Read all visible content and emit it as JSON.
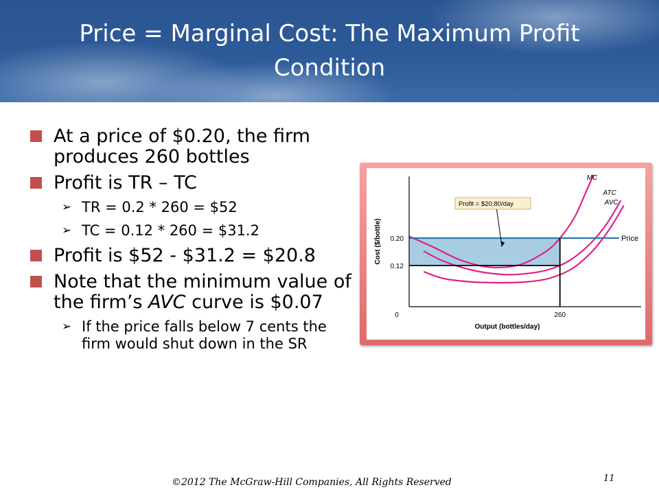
{
  "slide": {
    "title_line1": "Price = Marginal Cost: The Maximum Profit",
    "title_line2": "Condition",
    "bullets": {
      "b1": "At a price of $0.20, the firm produces 260 bottles",
      "b2": "Profit is TR – TC",
      "b2_sub1": "TR = 0.2 * 260 = $52",
      "b2_sub2": "TC = 0.12 * 260 = $31.2",
      "b3": "Profit is $52 - $31.2 = $20.8",
      "b4_pre": "Note that the minimum value of the firm’s ",
      "b4_italic": "AVC",
      "b4_post": " curve is $0.07",
      "b4_sub1": "If the price falls below 7 cents the firm would shut down in the SR"
    },
    "sub_marker": "➢",
    "footer": "©2012 The McGraw-Hill Companies, All Rights Reserved",
    "page_number": "11"
  },
  "chart_data": {
    "type": "line",
    "xlabel": "Output (bottles/day)",
    "ylabel": "Cost ($/bottle)",
    "x_ticks": [
      {
        "value": 0,
        "label": "0"
      },
      {
        "value": 260,
        "label": "260"
      }
    ],
    "y_ticks": [
      {
        "value": 0.12,
        "label": "0.12"
      },
      {
        "value": 0.2,
        "label": "0.20"
      }
    ],
    "xlim": [
      0,
      400
    ],
    "ylim": [
      0,
      0.38
    ],
    "price": {
      "value": 0.2,
      "label": "Price"
    },
    "atc_at_q": 0.12,
    "quantity": 260,
    "profit_annotation": "Profit = $20.80/day",
    "series": [
      {
        "name": "MC",
        "color": "#e0208a",
        "points": [
          [
            0,
            0.205
          ],
          [
            40,
            0.175
          ],
          [
            90,
            0.135
          ],
          [
            140,
            0.115
          ],
          [
            190,
            0.122
          ],
          [
            235,
            0.16
          ],
          [
            260,
            0.2
          ],
          [
            285,
            0.26
          ],
          [
            305,
            0.335
          ],
          [
            318,
            0.385
          ]
        ]
      },
      {
        "name": "ATC",
        "color": "#e0208a",
        "points": [
          [
            25,
            0.162
          ],
          [
            60,
            0.132
          ],
          [
            110,
            0.106
          ],
          [
            160,
            0.094
          ],
          [
            200,
            0.096
          ],
          [
            240,
            0.108
          ],
          [
            275,
            0.133
          ],
          [
            310,
            0.18
          ],
          [
            340,
            0.24
          ],
          [
            365,
            0.31
          ]
        ]
      },
      {
        "name": "AVC",
        "color": "#e0208a",
        "points": [
          [
            25,
            0.102
          ],
          [
            60,
            0.082
          ],
          [
            110,
            0.072
          ],
          [
            160,
            0.07
          ],
          [
            200,
            0.072
          ],
          [
            240,
            0.082
          ],
          [
            280,
            0.11
          ],
          [
            315,
            0.16
          ],
          [
            345,
            0.225
          ],
          [
            370,
            0.295
          ]
        ]
      }
    ],
    "colors": {
      "price_line": "#2a7aa8",
      "profit_fill": "#a8cde3",
      "axes": "#000000"
    }
  }
}
